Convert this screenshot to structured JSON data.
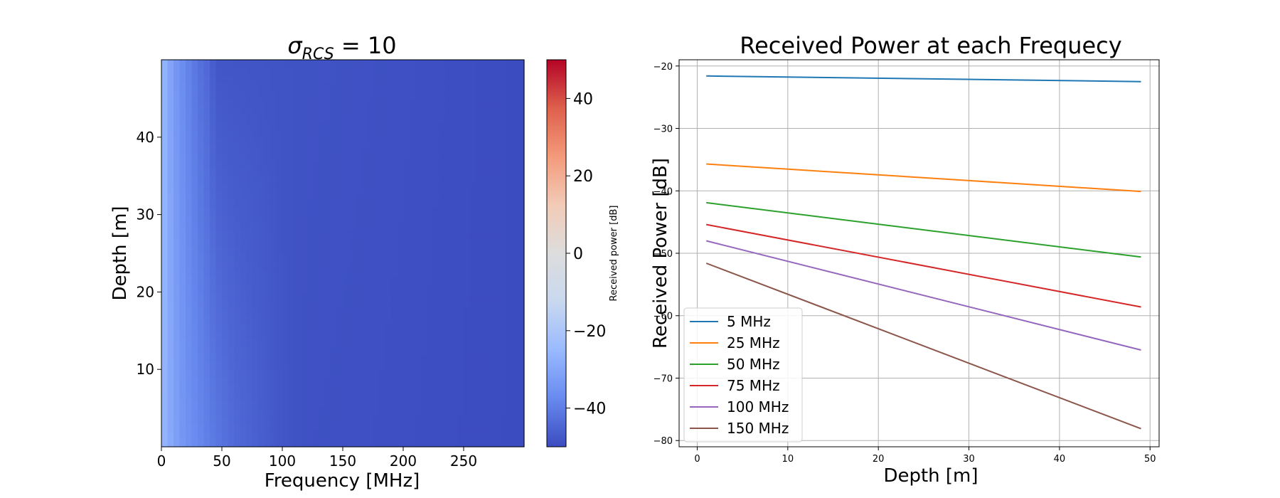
{
  "figure": {
    "background": "#ffffff"
  },
  "chart_data": [
    {
      "type": "heatmap",
      "title_math": {
        "symbol": "σ",
        "subscript": "RCS",
        "rest": " = 10"
      },
      "xlabel": "Frequency [MHz]",
      "ylabel": "Depth [m]",
      "xlim": [
        0,
        300
      ],
      "ylim": [
        0,
        50
      ],
      "xticks": [
        0,
        50,
        100,
        150,
        200,
        250
      ],
      "yticks": [
        10,
        20,
        30,
        40
      ],
      "colormap": "coolwarm",
      "colormap_stops": [
        "#3b4cc0",
        "#688aef",
        "#99baff",
        "#c9d8ef",
        "#dddddd",
        "#f2cbb7",
        "#f49a7b",
        "#de604d",
        "#b40426"
      ],
      "colorbar": {
        "label": "Received power [dB]",
        "range": [
          -50,
          50
        ],
        "ticks": [
          -40,
          -20,
          0,
          20,
          40
        ]
      },
      "column_values_at_depth_50": [
        {
          "freq": 0,
          "db": -25
        },
        {
          "freq": 5,
          "db": -29
        },
        {
          "freq": 10,
          "db": -33
        },
        {
          "freq": 20,
          "db": -38
        },
        {
          "freq": 30,
          "db": -42
        },
        {
          "freq": 40,
          "db": -45
        },
        {
          "freq": 45,
          "db": -48
        },
        {
          "freq": 300,
          "db": -50
        }
      ],
      "column_values_at_depth_0": [
        {
          "freq": 0,
          "db": -25
        },
        {
          "freq": 5,
          "db": -28
        },
        {
          "freq": 10,
          "db": -31
        },
        {
          "freq": 20,
          "db": -35
        },
        {
          "freq": 40,
          "db": -40
        },
        {
          "freq": 60,
          "db": -44
        },
        {
          "freq": 80,
          "db": -46
        },
        {
          "freq": 100,
          "db": -48
        },
        {
          "freq": 120,
          "db": -49
        },
        {
          "freq": 300,
          "db": -50
        }
      ]
    },
    {
      "type": "line",
      "title": "Received Power at each Frequecy",
      "xlabel": "Depth [m]",
      "ylabel": "Received Power [dB]",
      "xlim": [
        -2,
        51
      ],
      "ylim": [
        -81,
        -19
      ],
      "xticks": [
        0,
        10,
        20,
        30,
        40,
        50
      ],
      "yticks": [
        -80,
        -70,
        -60,
        -50,
        -40,
        -30,
        -20
      ],
      "grid": true,
      "legend_position": "lower-left",
      "series": [
        {
          "name": "5 MHz",
          "color": "#1f77b4",
          "x": [
            1,
            49
          ],
          "y": [
            -21.6,
            -22.5
          ]
        },
        {
          "name": "25 MHz",
          "color": "#ff7f0e",
          "x": [
            1,
            49
          ],
          "y": [
            -35.7,
            -40.1
          ]
        },
        {
          "name": "50 MHz",
          "color": "#2ca02c",
          "x": [
            1,
            49
          ],
          "y": [
            -41.9,
            -50.6
          ]
        },
        {
          "name": "75 MHz",
          "color": "#d62728",
          "x": [
            1,
            49
          ],
          "y": [
            -45.4,
            -58.6
          ]
        },
        {
          "name": "100 MHz",
          "color": "#9467bd",
          "x": [
            1,
            49
          ],
          "y": [
            -48.0,
            -65.5
          ]
        },
        {
          "name": "150 MHz",
          "color": "#8c564b",
          "x": [
            1,
            49
          ],
          "y": [
            -51.6,
            -78.1
          ]
        }
      ]
    }
  ]
}
